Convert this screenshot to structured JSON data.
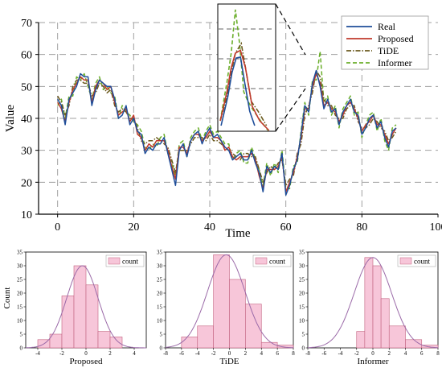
{
  "chart_data": [
    {
      "type": "line",
      "xlabel": "Time",
      "ylabel": "Value",
      "xlim": [
        -5,
        100
      ],
      "ylim": [
        10,
        70
      ],
      "xticks": [
        "0",
        "20",
        "40",
        "60",
        "80",
        "100"
      ],
      "yticks": [
        "10",
        "20",
        "30",
        "40",
        "50",
        "60",
        "70"
      ],
      "legend_position": "top-right",
      "x": [
        0,
        1,
        2,
        3,
        4,
        5,
        6,
        7,
        8,
        9,
        10,
        11,
        12,
        13,
        14,
        15,
        16,
        17,
        18,
        19,
        20,
        21,
        22,
        23,
        24,
        25,
        26,
        27,
        28,
        29,
        30,
        31,
        32,
        33,
        34,
        35,
        36,
        37,
        38,
        39,
        40,
        41,
        42,
        43,
        44,
        45,
        46,
        47,
        48,
        49,
        50,
        51,
        52,
        53,
        54,
        55,
        56,
        57,
        58,
        59,
        60,
        61,
        62,
        63,
        64,
        65,
        66,
        67,
        68,
        69,
        70,
        71,
        72,
        73,
        74,
        75,
        76,
        77,
        78,
        79,
        80,
        81,
        82,
        83,
        84,
        85,
        86,
        87,
        88,
        89
      ],
      "series": [
        {
          "name": "Real",
          "color": "#1f4e9a",
          "dash": "solid",
          "values": [
            46,
            44,
            38,
            46,
            48,
            50,
            54,
            53,
            53,
            44,
            49,
            52,
            51,
            50,
            50,
            46,
            40,
            41,
            44,
            38,
            40,
            36,
            35,
            29,
            31,
            30,
            32,
            32,
            34,
            29,
            24,
            19,
            30,
            32,
            28,
            33,
            35,
            36,
            32,
            35,
            37,
            34,
            35,
            33,
            31,
            30,
            27,
            28,
            29,
            27,
            27,
            30,
            26,
            23,
            17,
            25,
            23,
            25,
            24,
            29,
            16,
            19,
            24,
            27,
            35,
            44,
            42,
            51,
            55,
            50,
            43,
            46,
            42,
            43,
            38,
            42,
            44,
            46,
            42,
            41,
            35,
            37,
            40,
            41,
            37,
            39,
            34,
            31,
            36,
            37
          ]
        },
        {
          "name": "Proposed",
          "color": "#c0392b",
          "dash": "solid",
          "values": [
            45,
            43,
            39,
            45,
            49,
            51,
            53,
            52,
            52,
            45,
            50,
            52,
            51,
            49,
            50,
            45,
            41,
            42,
            43,
            39,
            41,
            35,
            34,
            30,
            32,
            31,
            33,
            33,
            33,
            30,
            25,
            21,
            31,
            31,
            29,
            33,
            35,
            35,
            33,
            34,
            36,
            34,
            34,
            33,
            30,
            31,
            28,
            27,
            28,
            28,
            28,
            29,
            27,
            22,
            18,
            24,
            24,
            24,
            25,
            28,
            17,
            20,
            23,
            28,
            34,
            43,
            43,
            50,
            54,
            51,
            44,
            45,
            43,
            42,
            39,
            41,
            44,
            45,
            43,
            40,
            36,
            38,
            39,
            41,
            38,
            38,
            35,
            32,
            35,
            37
          ]
        },
        {
          "name": "TiDE",
          "color": "#6b5a1e",
          "dash": "6,2,1.5,2",
          "values": [
            47,
            45,
            41,
            44,
            50,
            52,
            52,
            51,
            51,
            47,
            48,
            51,
            50,
            48,
            49,
            44,
            42,
            43,
            42,
            40,
            40,
            37,
            33,
            32,
            33,
            33,
            34,
            33,
            32,
            31,
            27,
            23,
            30,
            30,
            30,
            32,
            34,
            34,
            34,
            33,
            35,
            33,
            33,
            32,
            31,
            30,
            29,
            28,
            27,
            29,
            29,
            28,
            28,
            24,
            20,
            23,
            25,
            24,
            26,
            27,
            19,
            21,
            22,
            29,
            32,
            41,
            44,
            48,
            55,
            53,
            46,
            44,
            44,
            41,
            40,
            40,
            43,
            44,
            44,
            39,
            37,
            37,
            38,
            40,
            39,
            37,
            36,
            33,
            34,
            36
          ]
        },
        {
          "name": "Informer",
          "color": "#6aae2a",
          "dash": "5,3",
          "values": [
            44,
            46,
            40,
            47,
            47,
            53,
            52,
            54,
            50,
            46,
            51,
            53,
            49,
            50,
            48,
            47,
            40,
            44,
            42,
            41,
            39,
            38,
            36,
            31,
            30,
            32,
            31,
            34,
            35,
            29,
            26,
            22,
            32,
            33,
            28,
            34,
            36,
            37,
            33,
            36,
            38,
            35,
            36,
            34,
            32,
            32,
            27,
            29,
            30,
            26,
            26,
            31,
            27,
            24,
            19,
            26,
            22,
            26,
            23,
            30,
            18,
            18,
            25,
            26,
            36,
            45,
            41,
            52,
            52,
            61,
            45,
            47,
            41,
            44,
            37,
            43,
            45,
            47,
            41,
            42,
            34,
            38,
            41,
            42,
            36,
            40,
            33,
            30,
            37,
            38
          ]
        }
      ]
    },
    {
      "type": "bar",
      "xlabel": "Proposed",
      "ylabel": "Count",
      "legend": "count",
      "xlim": [
        -5,
        5
      ],
      "ylim": [
        0,
        35
      ],
      "xticks": [
        "-4",
        "-2",
        "0",
        "2",
        "4"
      ],
      "yticks": [
        "0",
        "5",
        "10",
        "15",
        "20",
        "25",
        "30",
        "35"
      ],
      "bins": [
        -4,
        -3,
        -2,
        -1,
        0,
        1,
        2,
        3
      ],
      "values": [
        3,
        5,
        19,
        30,
        23,
        6,
        4,
        0
      ],
      "bin_width": 1,
      "curve": {
        "mean": -0.3,
        "std": 1.3
      }
    },
    {
      "type": "bar",
      "xlabel": "TiDE",
      "legend": "count",
      "xlim": [
        -8,
        8
      ],
      "ylim": [
        0,
        35
      ],
      "xticks": [
        "-8",
        "-6",
        "-4",
        "-2",
        "0",
        "2",
        "4",
        "6",
        "8"
      ],
      "yticks": [
        "0",
        "5",
        "10",
        "15",
        "20",
        "25",
        "30",
        "35"
      ],
      "bins": [
        -8,
        -6,
        -4,
        -2,
        0,
        2,
        4,
        6
      ],
      "values": [
        0,
        4,
        8,
        34,
        25,
        16,
        2,
        1
      ],
      "bin_width": 2,
      "curve": {
        "mean": -0.4,
        "std": 2.35
      }
    },
    {
      "type": "bar",
      "xlabel": "Informer",
      "legend": "count",
      "xlim": [
        -8,
        8
      ],
      "ylim": [
        0,
        35
      ],
      "xticks": [
        "-8",
        "-6",
        "-4",
        "-2",
        "0",
        "2",
        "4",
        "6",
        "8"
      ],
      "yticks": [
        "0",
        "5",
        "10",
        "15",
        "20",
        "25",
        "30",
        "35"
      ],
      "bins": [
        -8,
        -6,
        -4,
        -2,
        -1,
        0,
        1,
        2,
        4,
        6
      ],
      "values": [
        0,
        0,
        0,
        6,
        33,
        30,
        18,
        8,
        3,
        1
      ],
      "bin_edges": [
        -8,
        -6,
        -4,
        -2,
        -1,
        0,
        1,
        2,
        4,
        6,
        8
      ],
      "curve": {
        "mean": 0.0,
        "std": 2.3
      }
    }
  ],
  "colors": {
    "hist_fill": "#f7c6d9",
    "hist_stroke": "#c2607f",
    "curve": "#9b6aa8",
    "grid": "#a0a0a0"
  }
}
